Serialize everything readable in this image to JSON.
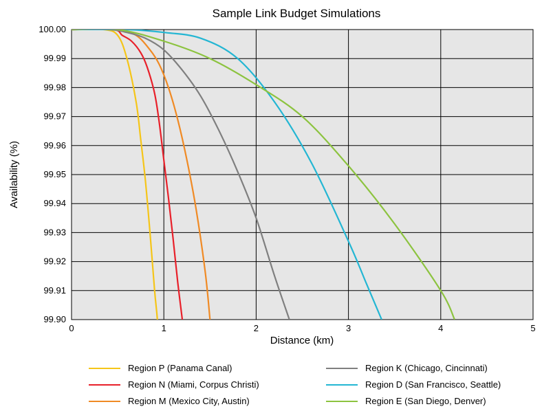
{
  "chart_data": {
    "type": "line",
    "title": "Sample Link Budget Simulations",
    "xlabel": "Distance (km)",
    "ylabel": "Availability (%)",
    "xlim": [
      0,
      5
    ],
    "ylim": [
      99.9,
      100.0
    ],
    "grid": true,
    "plot_background": "#e6e6e6",
    "legend_position": "bottom",
    "x_ticks": [
      "0",
      "1",
      "2",
      "3",
      "4",
      "5"
    ],
    "y_ticks": [
      "100.00",
      "99.99",
      "99.98",
      "99.97",
      "99.96",
      "99.95",
      "99.94",
      "99.93",
      "99.92",
      "99.91",
      "99.90"
    ],
    "series": [
      {
        "name": "Region P (Panama Canal)",
        "color": "#f5c518",
        "x": [
          0,
          0.35,
          0.5,
          0.6,
          0.7,
          0.75,
          0.8,
          0.85,
          0.9,
          0.93,
          0.97
        ],
        "y": [
          100.0,
          100.0,
          99.998,
          99.99,
          99.975,
          99.962,
          99.948,
          99.93,
          99.91,
          99.9,
          99.882
        ]
      },
      {
        "name": "Region N (Miami, Corpus Christi)",
        "color": "#e8202a",
        "x": [
          0,
          0.45,
          0.55,
          0.65,
          0.75,
          0.82,
          0.9,
          0.95,
          1.0,
          1.05,
          1.1,
          1.15,
          1.2
        ],
        "y": [
          100.0,
          100.0,
          99.998,
          99.996,
          99.992,
          99.987,
          99.978,
          99.968,
          99.955,
          99.942,
          99.928,
          99.913,
          99.9
        ]
      },
      {
        "name": "Region M (Mexico City, Austin)",
        "color": "#f08a24",
        "x": [
          0,
          0.5,
          0.7,
          0.85,
          0.95,
          1.05,
          1.15,
          1.25,
          1.35,
          1.45,
          1.5
        ],
        "y": [
          100.0,
          100.0,
          99.998,
          99.993,
          99.988,
          99.98,
          99.969,
          99.955,
          99.938,
          99.916,
          99.9
        ]
      },
      {
        "name": "Region K (Chicago, Cincinnati)",
        "color": "#7f7f7f",
        "x": [
          0,
          0.4,
          0.6,
          0.8,
          1.0,
          1.2,
          1.4,
          1.6,
          1.8,
          2.0,
          2.2,
          2.36
        ],
        "y": [
          100.0,
          100.0,
          99.999,
          99.997,
          99.993,
          99.986,
          99.977,
          99.965,
          99.951,
          99.935,
          99.915,
          99.9
        ]
      },
      {
        "name": "Region D (San Francisco, Seattle)",
        "color": "#23b6d3",
        "x": [
          0,
          0.6,
          1.0,
          1.4,
          1.8,
          2.2,
          2.6,
          3.0,
          3.2,
          3.36
        ],
        "y": [
          100.0,
          100.0,
          99.999,
          99.997,
          99.99,
          99.975,
          99.954,
          99.927,
          99.912,
          99.9
        ]
      },
      {
        "name": "Region E (San Diego, Denver)",
        "color": "#8cc33f",
        "x": [
          0,
          0.5,
          1.0,
          1.5,
          2.0,
          2.5,
          3.0,
          3.5,
          4.0,
          4.15
        ],
        "y": [
          100.0,
          100.0,
          99.996,
          99.99,
          99.981,
          99.97,
          99.953,
          99.933,
          99.91,
          99.9
        ]
      }
    ]
  }
}
